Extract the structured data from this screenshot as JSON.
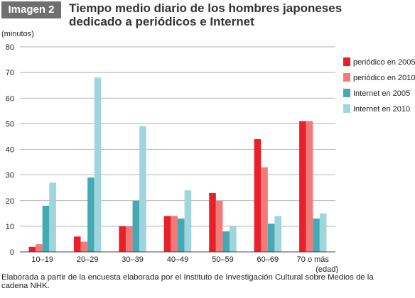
{
  "header": {
    "badge": "Imagen 2",
    "title_line1": "Tiempo medio diario de los hombres japoneses",
    "title_line2": "dedicado a periódicos e Internet"
  },
  "footnote": {
    "line1": "Elaborada a partir de la encuesta elaborada por el Instituto de Investigación Cultural sobre Medios de la",
    "line2": "cadena NHK."
  },
  "chart_data": {
    "type": "bar",
    "ylabel": "(minutos)",
    "xlabel": "(edad)",
    "ylim": [
      0,
      80
    ],
    "yticks": [
      0,
      10,
      20,
      30,
      40,
      50,
      60,
      70,
      80
    ],
    "grid": true,
    "legend_position": "right",
    "categories": [
      "10–19",
      "20–29",
      "30–39",
      "40–49",
      "50–59",
      "60–69",
      "70 o más"
    ],
    "series": [
      {
        "name": "periódico en 2005",
        "color": "#e8202a",
        "values": [
          2,
          6,
          10,
          14,
          23,
          44,
          51
        ]
      },
      {
        "name": "periódico en 2010",
        "color": "#f47a7a",
        "values": [
          3,
          4,
          10,
          14,
          20,
          33,
          51
        ]
      },
      {
        "name": "Internet en 2005",
        "color": "#45a9b4",
        "values": [
          18,
          29,
          20,
          13,
          8,
          11,
          13
        ]
      },
      {
        "name": "Internet en 2010",
        "color": "#9fd5dc",
        "values": [
          27,
          68,
          49,
          24,
          10,
          14,
          15
        ]
      }
    ]
  }
}
